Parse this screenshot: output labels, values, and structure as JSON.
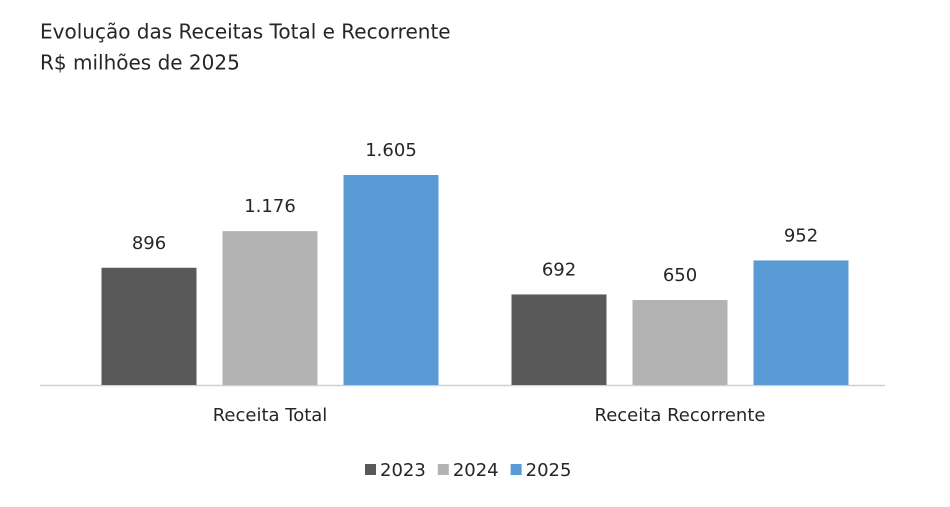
{
  "chart_data": {
    "type": "bar",
    "title": "Evolução das Receitas Total e Recorrente",
    "subtitle": "R$ milhões de 2025",
    "categories": [
      "Receita Total",
      "Receita Recorrente"
    ],
    "series": [
      {
        "name": "2023",
        "color": "#595959",
        "values": [
          896,
          692
        ]
      },
      {
        "name": "2024",
        "color": "#b3b3b3",
        "values": [
          1176,
          650
        ],
        "value_labels": [
          "1.176",
          "650"
        ]
      },
      {
        "name": "2025",
        "color": "#5b9bd5",
        "values": [
          1605,
          952
        ],
        "value_labels": [
          "1.605",
          "952"
        ]
      }
    ]
  }
}
